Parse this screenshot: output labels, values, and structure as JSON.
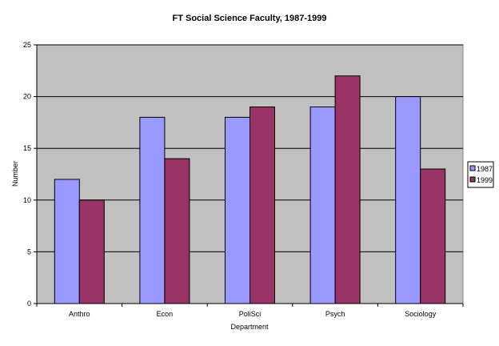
{
  "chart_data": {
    "type": "bar",
    "title": "FT Social Science Faculty, 1987-1999",
    "xlabel": "Department",
    "ylabel": "Number",
    "categories": [
      "Anthro",
      "Econ",
      "PoliSci",
      "Psych",
      "Sociology"
    ],
    "series": [
      {
        "name": "1987",
        "values": [
          12,
          18,
          18,
          19,
          20
        ],
        "color": "#9999ff"
      },
      {
        "name": "1999",
        "values": [
          10,
          14,
          19,
          22,
          13
        ],
        "color": "#993366"
      }
    ],
    "ylim": [
      0,
      25
    ],
    "yticks": [
      "0",
      "5",
      "10",
      "15",
      "20",
      "25"
    ],
    "grid": true,
    "plot_background": "#c0c0c0",
    "legend_position": "right"
  }
}
